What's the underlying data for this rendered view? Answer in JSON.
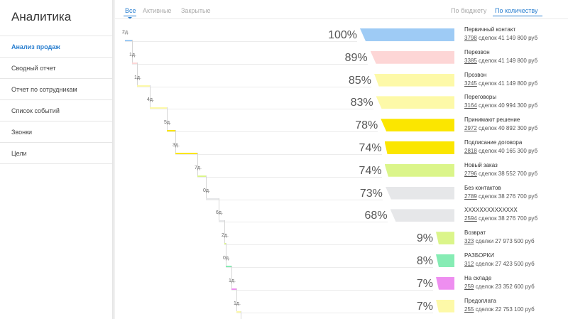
{
  "app_title": "Аналитика",
  "sidebar": {
    "items": [
      {
        "label": "Анализ продаж",
        "active": true
      },
      {
        "label": "Сводный отчет",
        "active": false
      },
      {
        "label": "Отчет по сотрудникам",
        "active": false
      },
      {
        "label": "Список событий",
        "active": false
      },
      {
        "label": "Звонки",
        "active": false
      },
      {
        "label": "Цели",
        "active": false
      }
    ]
  },
  "filters": {
    "tabs": [
      {
        "label": "Все",
        "active": true
      },
      {
        "label": "Активные",
        "active": false
      },
      {
        "label": "Закрытые",
        "active": false
      }
    ],
    "sort": [
      {
        "label": "По бюджету",
        "active": false
      },
      {
        "label": "По количеству",
        "active": true
      }
    ]
  },
  "stages": [
    {
      "name": "Первичный контакт",
      "count": "3798",
      "stats": "сделок 41 149 800 руб",
      "percent": "100%",
      "fraction": 1.0,
      "color": "#9ecbf5",
      "duration": "2д."
    },
    {
      "name": "Перезвон",
      "count": "3385",
      "stats": "сделок 41 149 800 руб",
      "percent": "89%",
      "fraction": 0.89,
      "color": "#fdd6d6",
      "duration": "1д."
    },
    {
      "name": "Прозвон",
      "count": "3245",
      "stats": "сделок 41 149 800 руб",
      "percent": "85%",
      "fraction": 0.85,
      "color": "#fdf9a8",
      "duration": "1д."
    },
    {
      "name": "Переговоры",
      "count": "3164",
      "stats": "сделок 40 994 300 руб",
      "percent": "83%",
      "fraction": 0.83,
      "color": "#fdf9a8",
      "duration": "4д."
    },
    {
      "name": "Принимают решение",
      "count": "2972",
      "stats": "сделок 40 892 300 руб",
      "percent": "78%",
      "fraction": 0.78,
      "color": "#fbe600",
      "duration": "5д."
    },
    {
      "name": "Подписание договора",
      "count": "2818",
      "stats": "сделок 40 165 300 руб",
      "percent": "74%",
      "fraction": 0.74,
      "color": "#fbe600",
      "duration": "3д."
    },
    {
      "name": "Новый заказ",
      "count": "2796",
      "stats": "сделок 38 552 700 руб",
      "percent": "74%",
      "fraction": 0.74,
      "color": "#dbf58a",
      "duration": "7д."
    },
    {
      "name": "Без контактов",
      "count": "2789",
      "stats": "сделок 38 276 700 руб",
      "percent": "73%",
      "fraction": 0.73,
      "color": "#e6e7e9",
      "duration": "0д."
    },
    {
      "name": "XXXXXXXXXXXXXX",
      "count": "2594",
      "stats": "сделок 38 276 700 руб",
      "percent": "68%",
      "fraction": 0.68,
      "color": "#e6e7e9",
      "duration": "6д."
    },
    {
      "name": "Возврат",
      "count": "323",
      "stats": "сделки 27 973 500 руб",
      "percent": "9%",
      "fraction": 0.09,
      "color": "#dbf58a",
      "duration": "2д."
    },
    {
      "name": "РАЗБОРКИ",
      "count": "312",
      "stats": "сделок 27 423 500 руб",
      "percent": "8%",
      "fraction": 0.08,
      "color": "#86ecb4",
      "duration": "0д."
    },
    {
      "name": "На складе",
      "count": "259",
      "stats": "сделок 23 352 600 руб",
      "percent": "7%",
      "fraction": 0.07,
      "color": "#ee8ef0",
      "duration": "1д."
    },
    {
      "name": "Предоплата",
      "count": "255",
      "stats": "сделок 22 753 100 руб",
      "percent": "7%",
      "fraction": 0.07,
      "color": "#fdf9a8",
      "duration": "1д."
    }
  ]
}
